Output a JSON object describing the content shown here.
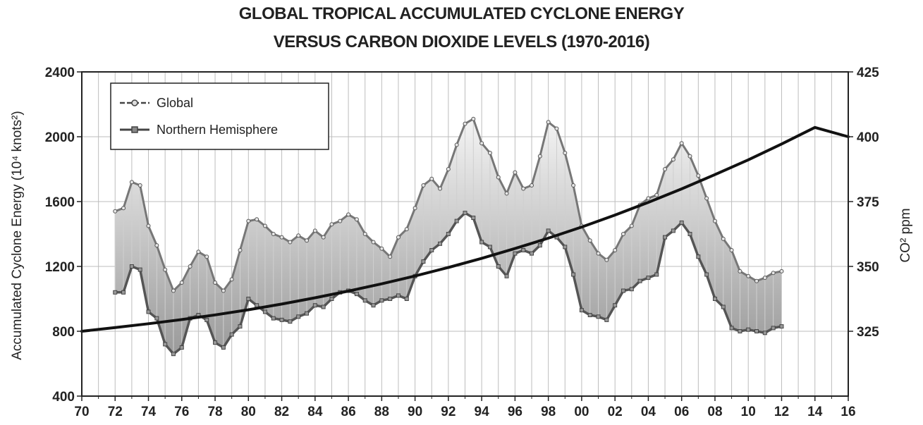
{
  "chart_data": {
    "type": "line",
    "title": "GLOBAL TROPICAL ACCUMULATED CYCLONE ENERGY",
    "subtitle": "VERSUS CARBON DIOXIDE LEVELS (1970-2016)",
    "ylabel": "Accumulated Cyclone Energy (10⁴ knots²)",
    "y2label": "CO² ppm",
    "xlim": [
      1970,
      2016
    ],
    "ylim": [
      400,
      2400
    ],
    "y2lim": [
      300,
      425
    ],
    "x_ticks": [
      "70",
      "72",
      "74",
      "76",
      "78",
      "80",
      "82",
      "84",
      "86",
      "88",
      "90",
      "92",
      "94",
      "96",
      "98",
      "00",
      "02",
      "04",
      "06",
      "08",
      "10",
      "12",
      "14",
      "16"
    ],
    "y_ticks": [
      "400",
      "800",
      "1200",
      "1600",
      "2000",
      "2400"
    ],
    "y2_ticks": [
      "325",
      "350",
      "375",
      "400",
      "425"
    ],
    "grid": true,
    "legend_position": "top-left",
    "series": [
      {
        "name": "Global",
        "axis": "left",
        "x": [
          1972.0,
          1972.5,
          1973.0,
          1973.5,
          1974.0,
          1974.5,
          1975.0,
          1975.5,
          1976.0,
          1976.5,
          1977.0,
          1977.5,
          1978.0,
          1978.5,
          1979.0,
          1979.5,
          1980.0,
          1980.5,
          1981.0,
          1981.5,
          1982.0,
          1982.5,
          1983.0,
          1983.5,
          1984.0,
          1984.5,
          1985.0,
          1985.5,
          1986.0,
          1986.5,
          1987.0,
          1987.5,
          1988.0,
          1988.5,
          1989.0,
          1989.5,
          1990.0,
          1990.5,
          1991.0,
          1991.5,
          1992.0,
          1992.5,
          1993.0,
          1993.5,
          1994.0,
          1994.5,
          1995.0,
          1995.5,
          1996.0,
          1996.5,
          1997.0,
          1997.5,
          1998.0,
          1998.5,
          1999.0,
          1999.5,
          2000.0,
          2000.5,
          2001.0,
          2001.5,
          2002.0,
          2002.5,
          2003.0,
          2003.5,
          2004.0,
          2004.5,
          2005.0,
          2005.5,
          2006.0,
          2006.5,
          2007.0,
          2007.5,
          2008.0,
          2008.5,
          2009.0,
          2009.5,
          2010.0,
          2010.5,
          2011.0,
          2011.5,
          2012.0
        ],
        "values": [
          1540,
          1560,
          1720,
          1700,
          1450,
          1330,
          1180,
          1050,
          1100,
          1200,
          1290,
          1260,
          1100,
          1050,
          1120,
          1300,
          1480,
          1490,
          1450,
          1400,
          1380,
          1350,
          1390,
          1360,
          1420,
          1380,
          1460,
          1480,
          1520,
          1490,
          1400,
          1350,
          1310,
          1260,
          1380,
          1430,
          1560,
          1700,
          1740,
          1680,
          1800,
          1950,
          2080,
          2110,
          1960,
          1900,
          1750,
          1650,
          1780,
          1680,
          1700,
          1880,
          2090,
          2050,
          1900,
          1700,
          1450,
          1360,
          1280,
          1240,
          1300,
          1400,
          1450,
          1580,
          1620,
          1640,
          1800,
          1860,
          1960,
          1880,
          1760,
          1620,
          1480,
          1370,
          1300,
          1170,
          1140,
          1110,
          1130,
          1160,
          1170
        ]
      },
      {
        "name": "Northern Hemisphere",
        "axis": "left",
        "x": [
          1972.0,
          1972.5,
          1973.0,
          1973.5,
          1974.0,
          1974.5,
          1975.0,
          1975.5,
          1976.0,
          1976.5,
          1977.0,
          1977.5,
          1978.0,
          1978.5,
          1979.0,
          1979.5,
          1980.0,
          1980.5,
          1981.0,
          1981.5,
          1982.0,
          1982.5,
          1983.0,
          1983.5,
          1984.0,
          1984.5,
          1985.0,
          1985.5,
          1986.0,
          1986.5,
          1987.0,
          1987.5,
          1988.0,
          1988.5,
          1989.0,
          1989.5,
          1990.0,
          1990.5,
          1991.0,
          1991.5,
          1992.0,
          1992.5,
          1993.0,
          1993.5,
          1994.0,
          1994.5,
          1995.0,
          1995.5,
          1996.0,
          1996.5,
          1997.0,
          1997.5,
          1998.0,
          1998.5,
          1999.0,
          1999.5,
          2000.0,
          2000.5,
          2001.0,
          2001.5,
          2002.0,
          2002.5,
          2003.0,
          2003.5,
          2004.0,
          2004.5,
          2005.0,
          2005.5,
          2006.0,
          2006.5,
          2007.0,
          2007.5,
          2008.0,
          2008.5,
          2009.0,
          2009.5,
          2010.0,
          2010.5,
          2011.0,
          2011.5,
          2012.0
        ],
        "values": [
          1040,
          1040,
          1200,
          1180,
          920,
          880,
          720,
          660,
          700,
          880,
          900,
          870,
          730,
          700,
          780,
          830,
          1000,
          960,
          920,
          880,
          870,
          860,
          890,
          910,
          960,
          950,
          1000,
          1040,
          1050,
          1030,
          990,
          960,
          990,
          1000,
          1020,
          1000,
          1140,
          1230,
          1300,
          1340,
          1400,
          1480,
          1530,
          1500,
          1350,
          1320,
          1200,
          1140,
          1280,
          1300,
          1280,
          1330,
          1420,
          1380,
          1320,
          1150,
          930,
          900,
          890,
          870,
          960,
          1050,
          1060,
          1110,
          1130,
          1150,
          1380,
          1420,
          1470,
          1400,
          1260,
          1150,
          1000,
          950,
          820,
          800,
          810,
          800,
          790,
          820,
          830
        ]
      },
      {
        "name": "CO² ppm",
        "axis": "right",
        "x": [
          1970,
          1972,
          1974,
          1976,
          1978,
          1980,
          1982,
          1984,
          1986,
          1988,
          1990,
          1992,
          1994,
          1996,
          1998,
          2000,
          2002,
          2004,
          2006,
          2008,
          2010,
          2012,
          2014,
          2016
        ],
        "values": [
          325,
          326.4,
          327.9,
          329.5,
          331.3,
          333.3,
          335.5,
          337.9,
          340.5,
          343.3,
          346.3,
          349.6,
          353.1,
          356.9,
          360.9,
          365.2,
          369.8,
          374.7,
          379.9,
          385.4,
          391.1,
          397.2,
          403.6,
          400
        ]
      }
    ]
  }
}
